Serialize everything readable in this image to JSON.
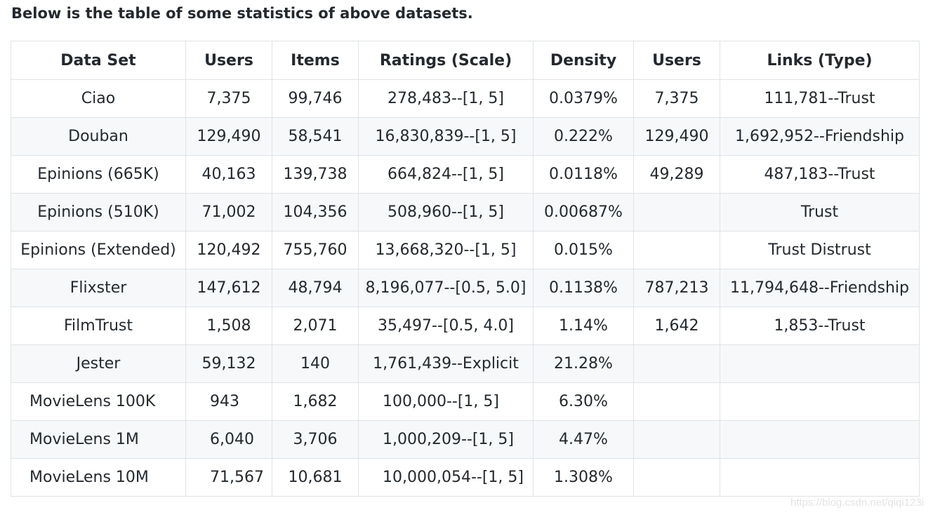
{
  "intro_text": "Below is the table of some statistics of above datasets.",
  "table": {
    "headers": [
      "Data Set",
      "Users",
      "Items",
      "Ratings (Scale)",
      "Density",
      "Users",
      "Links (Type)"
    ],
    "rows": [
      [
        "Ciao",
        "7,375",
        "99,746",
        "278,483--[1, 5]",
        "0.0379%",
        "7,375",
        "111,781--Trust"
      ],
      [
        "Douban",
        "129,490",
        "58,541",
        "16,830,839--[1, 5]",
        "0.222%",
        "129,490",
        "1,692,952--Friendship"
      ],
      [
        "Epinions (665K)",
        "40,163",
        "139,738",
        "664,824--[1, 5]",
        "0.0118%",
        "49,289",
        "487,183--Trust"
      ],
      [
        "Epinions (510K)",
        "71,002",
        "104,356",
        "508,960--[1, 5]",
        "0.00687%",
        "",
        "Trust"
      ],
      [
        "Epinions (Extended)",
        "120,492",
        "755,760",
        "13,668,320--[1, 5]",
        "0.015%",
        "",
        "Trust Distrust"
      ],
      [
        "Flixster",
        "147,612",
        "48,794",
        "8,196,077--[0.5, 5.0]",
        "0.1138%",
        "787,213",
        "11,794,648--Friendship"
      ],
      [
        "FilmTrust",
        "1,508",
        "2,071",
        "35,497--[0.5, 4.0]",
        "1.14%",
        "1,642",
        "1,853--Trust"
      ],
      [
        "Jester",
        "59,132",
        "140",
        "1,761,439--Explicit",
        "21.28%",
        "",
        ""
      ],
      [
        "MovieLens 100K",
        "943",
        "1,682",
        "100,000--[1, 5]",
        "6.30%",
        "",
        ""
      ],
      [
        "MovieLens 1M",
        "6,040",
        "3,706",
        "1,000,209--[1, 5]",
        "4.47%",
        "",
        ""
      ],
      [
        "MovieLens 10M",
        "71,567",
        "10,681",
        "10,000,054--[1, 5]",
        "1.308%",
        "",
        ""
      ]
    ]
  },
  "watermark": "https://blog.csdn.net/qiqi123i"
}
